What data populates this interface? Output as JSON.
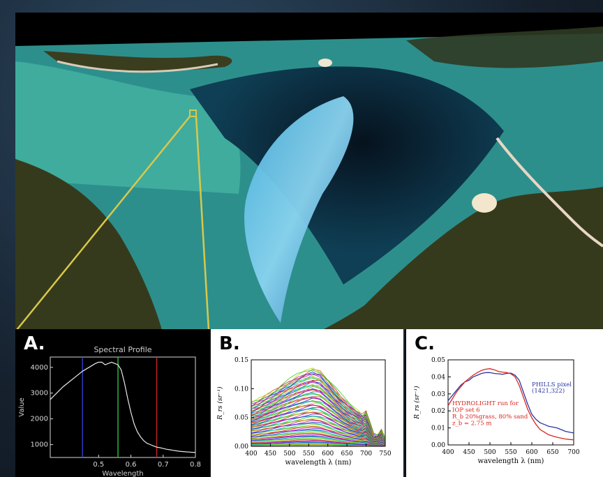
{
  "panels": {
    "a_label": "A.",
    "b_label": "B.",
    "c_label": "C."
  },
  "colors": {
    "callout_box": "#d9c84a",
    "water_deep": "#0a1e30",
    "water_shallow": "#3fb3a6",
    "sand_bank": "#7fc6e8",
    "land": "#3a3e1f"
  },
  "chart_data": [
    {
      "type": "line",
      "title": "Spectral Profile",
      "xlabel": "Wavelength",
      "ylabel": "Value",
      "xlim": [
        0.35,
        0.8
      ],
      "ylim": [
        500,
        4400
      ],
      "x_ticks": [
        0.5,
        0.6,
        0.7,
        0.8
      ],
      "x_tick_labels": [
        "0.5",
        "0.6",
        "0.7",
        "0.8"
      ],
      "y_ticks": [
        1000,
        2000,
        3000,
        4000
      ],
      "y_tick_labels": [
        "1000",
        "2000",
        "3000",
        "4000"
      ],
      "markers": [
        {
          "x": 0.45,
          "color": "#3340c8"
        },
        {
          "x": 0.56,
          "color": "#2fbf3a"
        },
        {
          "x": 0.68,
          "color": "#c22a2a"
        }
      ],
      "series": [
        {
          "color": "#e8e8e8",
          "x": [
            0.35,
            0.37,
            0.39,
            0.41,
            0.43,
            0.45,
            0.47,
            0.49,
            0.5,
            0.51,
            0.52,
            0.53,
            0.54,
            0.55,
            0.56,
            0.57,
            0.58,
            0.59,
            0.6,
            0.61,
            0.62,
            0.63,
            0.64,
            0.65,
            0.66,
            0.67,
            0.68,
            0.69,
            0.7,
            0.71,
            0.72,
            0.73,
            0.74,
            0.75,
            0.76,
            0.77,
            0.78,
            0.79,
            0.8
          ],
          "y": [
            2750,
            3000,
            3250,
            3450,
            3650,
            3850,
            4000,
            4150,
            4200,
            4200,
            4100,
            4150,
            4200,
            4150,
            4100,
            3900,
            3400,
            2800,
            2250,
            1800,
            1500,
            1300,
            1150,
            1050,
            1000,
            950,
            900,
            880,
            850,
            820,
            800,
            780,
            760,
            740,
            730,
            720,
            710,
            700,
            700
          ]
        }
      ]
    },
    {
      "type": "line",
      "xlabel": "wavelength λ (nm)",
      "ylabel": "R_rs (sr⁻¹)",
      "xlim": [
        400,
        750
      ],
      "ylim": [
        0,
        0.15
      ],
      "x_ticks": [
        400,
        450,
        500,
        550,
        600,
        650,
        700,
        750
      ],
      "x_tick_labels": [
        "400",
        "450",
        "500",
        "550",
        "600",
        "650",
        "700",
        "750"
      ],
      "y_ticks": [
        0,
        0.05,
        0.1,
        0.15
      ],
      "y_tick_labels": [
        "0.00",
        "0.05",
        "0.10",
        "0.15"
      ],
      "family": {
        "x": [
          400,
          420,
          440,
          460,
          480,
          500,
          520,
          540,
          560,
          580,
          600,
          620,
          640,
          660,
          680,
          690,
          700,
          710,
          720,
          730,
          740,
          750
        ],
        "shape": [
          0.55,
          0.6,
          0.66,
          0.72,
          0.79,
          0.85,
          0.91,
          0.96,
          1.0,
          0.97,
          0.86,
          0.74,
          0.62,
          0.52,
          0.44,
          0.4,
          0.45,
          0.3,
          0.14,
          0.13,
          0.2,
          0.1
        ],
        "peak_min": 0.002,
        "peak_max": 0.135,
        "count": 80
      }
    },
    {
      "type": "line",
      "xlabel": "wavelength λ (nm)",
      "ylabel": "R_rs (sr⁻¹)",
      "xlim": [
        400,
        700
      ],
      "ylim": [
        0,
        0.05
      ],
      "x_ticks": [
        400,
        450,
        500,
        550,
        600,
        650,
        700
      ],
      "x_tick_labels": [
        "400",
        "450",
        "500",
        "550",
        "600",
        "650",
        "700"
      ],
      "y_ticks": [
        0,
        0.01,
        0.02,
        0.03,
        0.04,
        0.05
      ],
      "y_tick_labels": [
        "0.00",
        "0.01",
        "0.02",
        "0.03",
        "0.04",
        "0.05"
      ],
      "annotations": {
        "phills": [
          "PHILLS pixel",
          "(1421,322)"
        ],
        "hydrolight": [
          "HYDROLIGHT run for",
          "IOP set 6",
          "R_b 20%grass, 80% sand",
          "z_b = 2.75 m"
        ]
      },
      "series": [
        {
          "name": "PHILLS pixel",
          "color": "#2a35a0",
          "x": [
            400,
            410,
            420,
            430,
            440,
            450,
            460,
            470,
            480,
            490,
            500,
            510,
            520,
            530,
            540,
            550,
            560,
            570,
            580,
            590,
            600,
            610,
            620,
            630,
            640,
            650,
            660,
            670,
            680,
            690,
            700
          ],
          "y": [
            0.026,
            0.029,
            0.032,
            0.035,
            0.037,
            0.038,
            0.04,
            0.041,
            0.042,
            0.0425,
            0.0425,
            0.042,
            0.0418,
            0.0415,
            0.042,
            0.0422,
            0.041,
            0.038,
            0.031,
            0.024,
            0.018,
            0.015,
            0.013,
            0.012,
            0.011,
            0.0105,
            0.01,
            0.009,
            0.008,
            0.0075,
            0.007
          ]
        },
        {
          "name": "HYDROLIGHT run",
          "color": "#d8261f",
          "x": [
            400,
            410,
            420,
            430,
            440,
            450,
            460,
            470,
            480,
            490,
            500,
            510,
            520,
            530,
            540,
            550,
            560,
            570,
            580,
            590,
            600,
            610,
            620,
            630,
            640,
            650,
            660,
            670,
            680,
            690,
            700
          ],
          "y": [
            0.023,
            0.027,
            0.031,
            0.034,
            0.037,
            0.039,
            0.041,
            0.0425,
            0.0438,
            0.0445,
            0.0448,
            0.0442,
            0.0432,
            0.0428,
            0.0425,
            0.0418,
            0.04,
            0.035,
            0.028,
            0.021,
            0.016,
            0.012,
            0.009,
            0.0075,
            0.006,
            0.0052,
            0.0045,
            0.004,
            0.0035,
            0.0032,
            0.003
          ]
        }
      ]
    }
  ]
}
